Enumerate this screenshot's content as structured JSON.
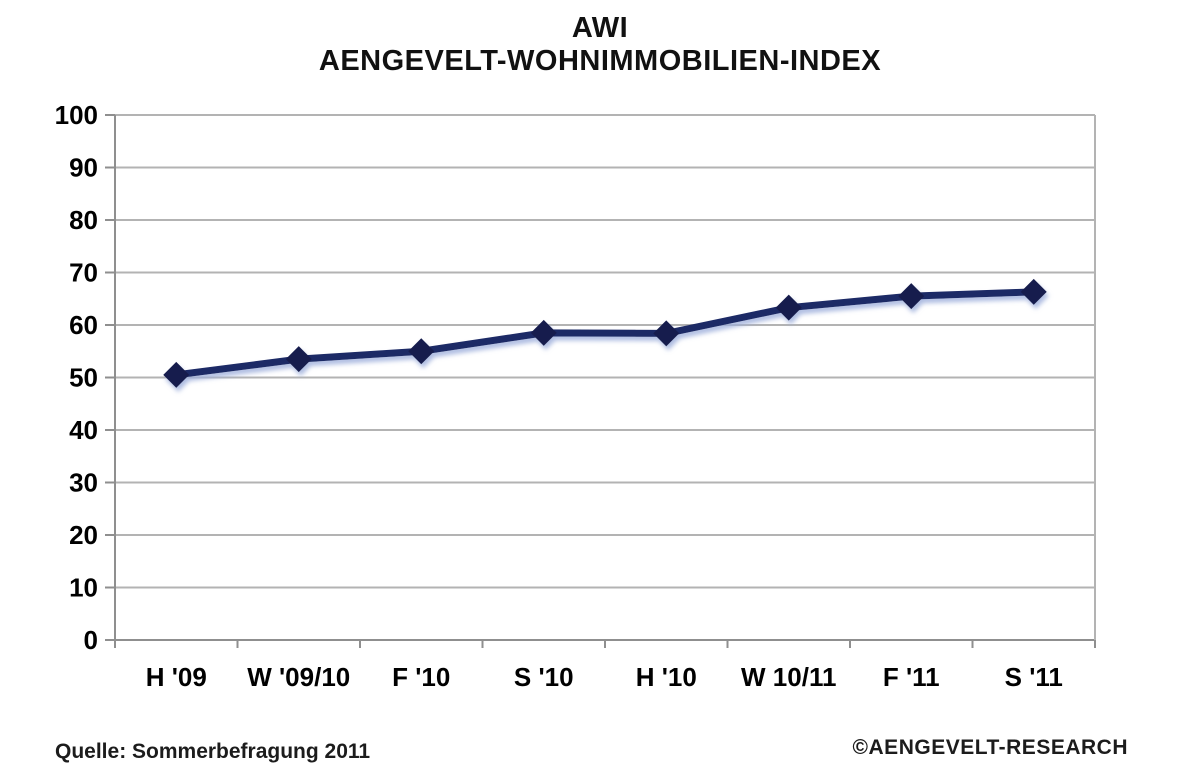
{
  "title": {
    "line1": "AWI",
    "line2": "AENGEVELT-WOHNIMMOBILIEN-INDEX"
  },
  "footer": {
    "source": "Quelle: Sommerbefragung 2011",
    "copyright": "©AENGEVELT-RESEARCH"
  },
  "colors": {
    "line": "#1f2a66",
    "marker": "#141a4d",
    "shadow": "#9fb0dc",
    "grid": "#b3b3b3",
    "axis": "#8f8f8f",
    "tick_text": "#000000"
  },
  "chart_data": {
    "type": "line",
    "title": "AWI AENGEVELT-WOHNIMMOBILIEN-INDEX",
    "categories": [
      "H '09",
      "W '09/10",
      "F '10",
      "S '10",
      "H '10",
      "W 10/11",
      "F '11",
      "S '11"
    ],
    "series": [
      {
        "name": "AWI",
        "values": [
          50.5,
          53.5,
          55.0,
          58.5,
          58.4,
          63.3,
          65.5,
          66.3
        ]
      }
    ],
    "xlabel": "",
    "ylabel": "",
    "ylim": [
      0,
      100
    ],
    "ytick_step": 10,
    "yticks": [
      0,
      10,
      20,
      30,
      40,
      50,
      60,
      70,
      80,
      90,
      100
    ],
    "grid": true,
    "legend": "none",
    "marker": "diamond"
  }
}
